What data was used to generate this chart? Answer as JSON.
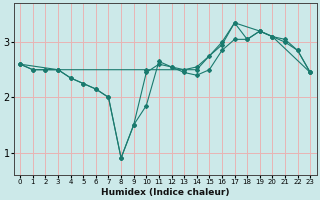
{
  "xlabel": "Humidex (Indice chaleur)",
  "background_color": "#cce9e9",
  "grid_color": "#e8b4b4",
  "line_color": "#1a7a6e",
  "xlim": [
    -0.5,
    23.5
  ],
  "ylim": [
    0.6,
    3.7
  ],
  "yticks": [
    1,
    2,
    3
  ],
  "xticks": [
    0,
    1,
    2,
    3,
    4,
    5,
    6,
    7,
    8,
    9,
    10,
    11,
    12,
    13,
    14,
    15,
    16,
    17,
    18,
    19,
    20,
    21,
    22,
    23
  ],
  "series": [
    {
      "x": [
        0,
        1,
        2,
        3,
        4,
        5,
        6,
        7,
        8,
        9,
        10,
        11,
        12,
        13,
        14,
        15,
        16,
        17,
        18,
        19,
        20,
        21,
        22,
        23
      ],
      "y": [
        2.6,
        2.5,
        2.5,
        2.5,
        2.35,
        2.25,
        2.15,
        2.0,
        0.9,
        1.5,
        1.85,
        2.65,
        2.55,
        2.5,
        2.55,
        2.75,
        2.95,
        3.35,
        3.05,
        3.2,
        3.1,
        3.0,
        2.85,
        2.45
      ]
    },
    {
      "x": [
        0,
        1,
        2,
        3,
        4,
        5,
        6,
        7,
        8,
        9,
        10,
        11,
        12,
        13,
        14,
        15,
        16,
        17,
        18,
        19,
        20,
        21,
        22,
        23
      ],
      "y": [
        2.6,
        2.5,
        2.5,
        2.5,
        2.35,
        2.25,
        2.15,
        2.0,
        0.9,
        1.5,
        2.45,
        2.6,
        2.55,
        2.45,
        2.4,
        2.5,
        2.85,
        3.05,
        3.05,
        3.2,
        3.1,
        3.05,
        2.85,
        2.45
      ]
    },
    {
      "x": [
        0,
        3,
        10,
        14,
        16,
        17,
        19,
        20,
        23
      ],
      "y": [
        2.6,
        2.5,
        2.5,
        2.5,
        3.0,
        3.35,
        3.2,
        3.1,
        2.45
      ]
    }
  ]
}
